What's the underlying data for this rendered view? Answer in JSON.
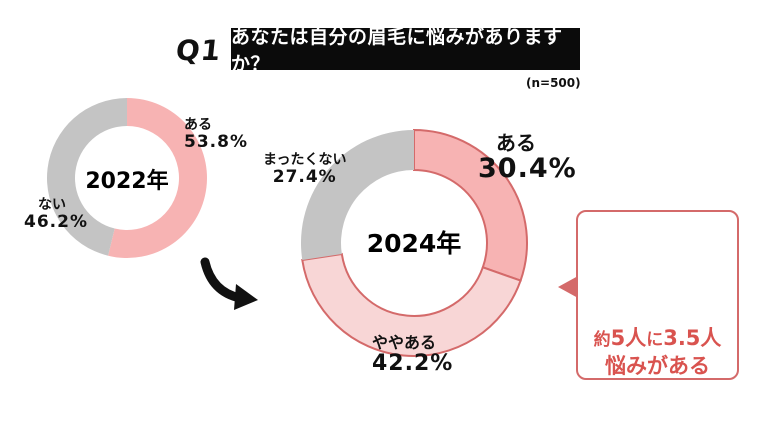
{
  "header": {
    "q_label": "Q1",
    "question": "あなたは自分の眉毛に悩みがありますか？",
    "sample_size": "(n=500)"
  },
  "chart_data": [
    {
      "type": "pie",
      "variant": "donut",
      "center_label": "2022年",
      "slices": [
        {
          "label": "ある",
          "value": 53.8,
          "value_label": "53.8%",
          "color": "#f7b3b3"
        },
        {
          "label": "ない",
          "value": 46.2,
          "value_label": "46.2%",
          "color": "#c4c4c4"
        }
      ]
    },
    {
      "type": "pie",
      "variant": "donut",
      "center_label": "2024年",
      "slices": [
        {
          "label": "ある",
          "value": 30.4,
          "value_label": "30.4%",
          "color": "#f7b3b3"
        },
        {
          "label": "ややある",
          "value": 42.2,
          "value_label": "42.2%",
          "color": "#f8d6d6"
        },
        {
          "label": "まったくない",
          "value": 27.4,
          "value_label": "27.4%",
          "color": "#c4c4c4"
        }
      ]
    }
  ],
  "callout": {
    "line1_prefix": "約",
    "line1_a": "5人",
    "line1_mid": "に",
    "line1_b": "3.5人",
    "line2": "悩みがある",
    "people_total": 5,
    "people_affected": 3.5,
    "color": "#d9534f"
  },
  "colors": {
    "ring_stroke": "#d46a6a",
    "arrow": "#111111"
  }
}
